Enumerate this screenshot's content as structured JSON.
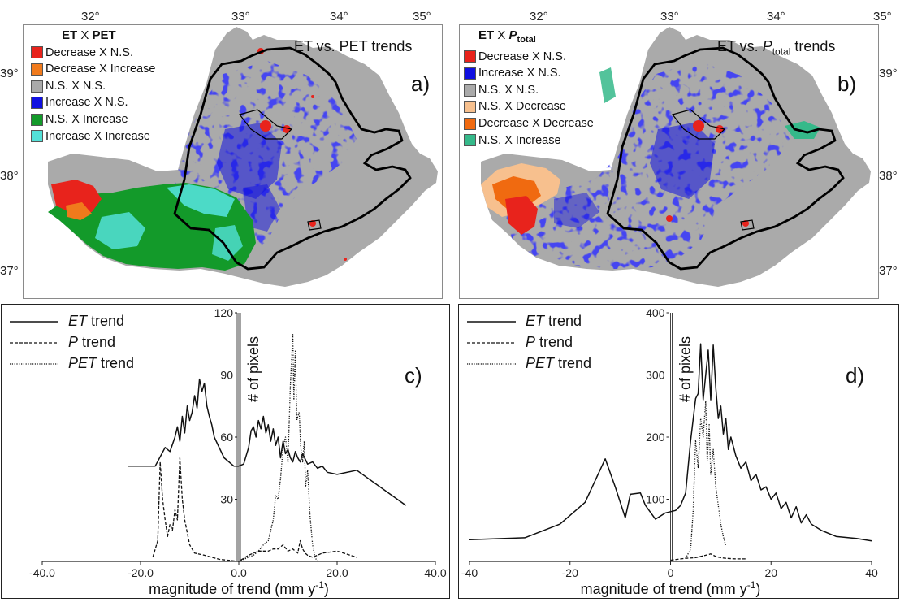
{
  "maps": [
    {
      "letter": "a)",
      "title": "ET vs. PET trends",
      "legend_title": {
        "a": "ET",
        "x": "X",
        "b": "PET",
        "sub": ""
      },
      "legend": [
        {
          "label": "Decrease X N.S.",
          "color": "#e8231c"
        },
        {
          "label": "Decrease X Increase",
          "color": "#f07a1c"
        },
        {
          "label": "N.S. X N.S.",
          "color": "#aaaaaa"
        },
        {
          "label": "Increase X N.S.",
          "color": "#1010e0"
        },
        {
          "label": "N.S. X Increase",
          "color": "#139a2a"
        },
        {
          "label": "Increase X Increase",
          "color": "#53e1d8"
        }
      ]
    },
    {
      "letter": "b)",
      "title": "ET vs. ",
      "title_sym": "P",
      "title_sub": "total",
      "title_end": " trends",
      "legend_title": {
        "a": "ET",
        "x": "X",
        "b": "P",
        "sub": "total"
      },
      "legend": [
        {
          "label": "Decrease X N.S.",
          "color": "#e8231c"
        },
        {
          "label": "Increase X N.S.",
          "color": "#1010e0"
        },
        {
          "label": "N.S. X N.S.",
          "color": "#aaaaaa"
        },
        {
          "label": "N.S. X Decrease",
          "color": "#f7c08e"
        },
        {
          "label": "Decrease X Decrease",
          "color": "#f06a10"
        },
        {
          "label": "N.S. X Increase",
          "color": "#35b98a"
        }
      ]
    }
  ],
  "map_axes": {
    "lon_labels": [
      "32°",
      "33°",
      "34°",
      "35°"
    ],
    "lat_labels": [
      "39°",
      "38°",
      "37°"
    ]
  },
  "colors": {
    "gray": "#aaaaaa",
    "blue": "#1010e0",
    "green": "#139a2a",
    "cyan": "#53e1d8",
    "red": "#e8231c",
    "orange": "#f07a1c",
    "peach": "#f7c08e",
    "teal": "#35b98a"
  },
  "chart_data": [
    {
      "type": "line",
      "panel": "c)",
      "xlabel": "magnitude of trend (mm y",
      "xlabel_sup": "-1",
      "xlabel_end": ")",
      "ylabel": "# of pixels",
      "xlim": [
        -40,
        40
      ],
      "ylim": [
        0,
        120
      ],
      "xticks": [
        "-40.0",
        "-20.0",
        "0.0",
        "20.0",
        "40.0"
      ],
      "yticks": [
        "30",
        "60",
        "90",
        "120"
      ],
      "legend": [
        {
          "sym": "ET",
          "text": " trend",
          "dash": "solid"
        },
        {
          "sym": "P",
          "text": " trend",
          "dash": "dashed"
        },
        {
          "sym": "PET",
          "text": " trend",
          "dash": "dotted"
        }
      ],
      "series": [
        {
          "name": "ET trend",
          "dash": "solid",
          "x": [
            -22.5,
            -17,
            -15,
            -14,
            -13,
            -12.5,
            -12,
            -11.5,
            -11,
            -10.5,
            -10,
            -9.5,
            -9,
            -8.5,
            -8,
            -7.5,
            -7,
            -6.5,
            -6,
            -5.5,
            -5,
            -4,
            -3,
            -1,
            0,
            1,
            2,
            2.5,
            3,
            3.5,
            4,
            4.5,
            5,
            5.5,
            6,
            6.5,
            7,
            7.5,
            8,
            8.5,
            9,
            9.5,
            10,
            10.5,
            11,
            11.5,
            12,
            12.5,
            13,
            14,
            15,
            16,
            17,
            18,
            20,
            24,
            34
          ],
          "y": [
            46,
            46,
            55,
            53,
            60,
            65,
            58,
            70,
            62,
            75,
            68,
            72,
            80,
            74,
            88,
            82,
            86,
            75,
            70,
            66,
            60,
            55,
            50,
            46,
            46,
            47,
            55,
            63,
            65,
            60,
            68,
            64,
            70,
            62,
            66,
            58,
            64,
            56,
            60,
            50,
            58,
            52,
            54,
            50,
            48,
            53,
            50,
            48,
            52,
            47,
            48,
            45,
            46,
            43,
            42,
            44,
            27
          ]
        },
        {
          "name": "P trend",
          "dash": "dashed",
          "x": [
            -17.5,
            -16.5,
            -16,
            -15.5,
            -15,
            -14.5,
            -14,
            -13.5,
            -13,
            -12.5,
            -12,
            -11.5,
            -11,
            -10,
            -9,
            -7,
            -4,
            0,
            2,
            4,
            6,
            7,
            8,
            9,
            10,
            11,
            12,
            12.5,
            13,
            13.5,
            14,
            15,
            17,
            20,
            24
          ],
          "y": [
            2,
            10,
            48,
            30,
            20,
            12,
            18,
            15,
            25,
            20,
            50,
            30,
            20,
            8,
            4,
            3,
            1,
            0,
            3,
            5,
            5,
            6,
            6,
            8,
            5,
            6,
            4,
            10,
            6,
            4,
            3,
            2,
            4,
            5,
            2
          ]
        },
        {
          "name": "PET trend",
          "dash": "dotted",
          "x": [
            0,
            2,
            3,
            4,
            5,
            6,
            7,
            7.5,
            8,
            8.5,
            9,
            9.5,
            10,
            10.5,
            11,
            11.2,
            11.5,
            11.8,
            12,
            12.3,
            12.6,
            13,
            13.3,
            13.6,
            14,
            14.5,
            15,
            15.5,
            16
          ],
          "y": [
            0,
            2,
            3,
            5,
            8,
            10,
            20,
            32,
            30,
            40,
            55,
            60,
            48,
            85,
            110,
            78,
            102,
            68,
            70,
            72,
            55,
            48,
            58,
            36,
            44,
            22,
            8,
            2,
            0
          ]
        }
      ]
    },
    {
      "type": "line",
      "panel": "d)",
      "xlabel": "magnitude of trend (mm y",
      "xlabel_sup": "-1",
      "xlabel_end": ")",
      "ylabel": "# of pixels",
      "xlim": [
        -40,
        40
      ],
      "ylim": [
        0,
        400
      ],
      "xticks": [
        "-40",
        "-20",
        "0",
        "20",
        "40"
      ],
      "yticks": [
        "100",
        "200",
        "300",
        "400"
      ],
      "legend": [
        {
          "sym": "ET",
          "text": " trend",
          "dash": "solid"
        },
        {
          "sym": "P",
          "text": " trend",
          "dash": "dashed"
        },
        {
          "sym": "PET",
          "text": " trend",
          "dash": "dotted"
        }
      ],
      "series": [
        {
          "name": "ET trend",
          "dash": "solid",
          "x": [
            -40,
            -29,
            -22,
            -17,
            -13,
            -11,
            -9,
            -8,
            -6,
            -5,
            -3,
            -1,
            0,
            1,
            2,
            3,
            4,
            5,
            5.5,
            6,
            6.5,
            7,
            7.5,
            8,
            8.5,
            9,
            9.5,
            10,
            10.5,
            11,
            11.5,
            12,
            13,
            14,
            15,
            16,
            17,
            18,
            19,
            20,
            21,
            22,
            23,
            24,
            25,
            26,
            27,
            28,
            30,
            33,
            37,
            40
          ],
          "y": [
            35,
            38,
            60,
            95,
            165,
            120,
            70,
            108,
            110,
            90,
            68,
            78,
            80,
            82,
            90,
            110,
            195,
            262,
            270,
            350,
            260,
            300,
            340,
            260,
            348,
            280,
            230,
            250,
            205,
            230,
            180,
            200,
            170,
            150,
            160,
            130,
            140,
            115,
            120,
            100,
            110,
            85,
            95,
            70,
            88,
            62,
            75,
            60,
            50,
            40,
            37,
            33
          ]
        },
        {
          "name": "P trend",
          "dash": "dashed",
          "x": [
            0,
            3,
            5,
            6,
            7,
            8,
            9,
            10,
            11,
            13,
            15
          ],
          "y": [
            2,
            5,
            6,
            8,
            10,
            12,
            8,
            6,
            5,
            4,
            4
          ]
        },
        {
          "name": "PET trend",
          "dash": "dotted",
          "x": [
            3,
            4,
            4.5,
            5,
            5.5,
            6,
            6.5,
            7,
            7.3,
            7.7,
            8,
            8.5,
            9,
            9.5,
            10,
            10.5,
            11
          ],
          "y": [
            5,
            20,
            80,
            195,
            150,
            230,
            200,
            258,
            160,
            220,
            140,
            180,
            120,
            90,
            60,
            40,
            25
          ]
        }
      ]
    }
  ]
}
